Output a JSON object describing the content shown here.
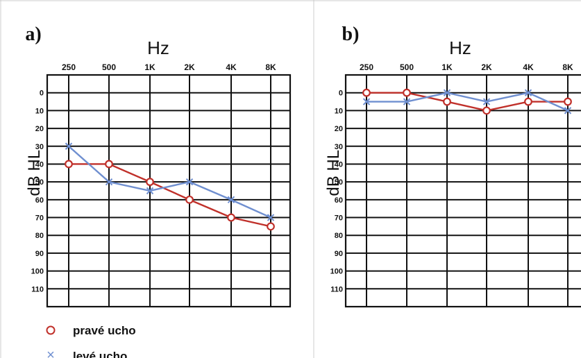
{
  "colors": {
    "right_ear": "#c0302a",
    "left_ear": "#6f8fd0",
    "grid": "#111111"
  },
  "legend": {
    "right_ear_symbol": "o",
    "right_ear_label": "pravé ucho",
    "left_ear_symbol": "×",
    "left_ear_label": "levé ucho"
  },
  "chart_data": [
    {
      "type": "line",
      "panel_label": "a)",
      "xlabel": "Hz",
      "ylabel": "dB HL",
      "categories": [
        "250",
        "500",
        "1K",
        "2K",
        "4K",
        "8K"
      ],
      "yticks": [
        "0",
        "10",
        "20",
        "30",
        "40",
        "50",
        "60",
        "70",
        "80",
        "90",
        "100",
        "110"
      ],
      "ylim": [
        -10,
        120
      ],
      "y_inverted": true,
      "grid": true,
      "series": [
        {
          "name": "pravé ucho",
          "marker": "circle",
          "values": [
            40,
            40,
            50,
            60,
            70,
            75
          ]
        },
        {
          "name": "levé ucho",
          "marker": "cross",
          "values": [
            30,
            50,
            55,
            50,
            60,
            70
          ]
        }
      ]
    },
    {
      "type": "line",
      "panel_label": "b)",
      "xlabel": "Hz",
      "ylabel": "dB HL",
      "categories": [
        "250",
        "500",
        "1K",
        "2K",
        "4K",
        "8K"
      ],
      "yticks": [
        "0",
        "10",
        "20",
        "30",
        "40",
        "50",
        "60",
        "70",
        "80",
        "90",
        "100",
        "110"
      ],
      "ylim": [
        -10,
        120
      ],
      "y_inverted": true,
      "grid": true,
      "series": [
        {
          "name": "pravé ucho",
          "marker": "circle",
          "values": [
            0,
            0,
            5,
            10,
            5,
            5
          ]
        },
        {
          "name": "levé ucho",
          "marker": "cross",
          "values": [
            5,
            5,
            0,
            5,
            0,
            10
          ]
        }
      ]
    }
  ]
}
